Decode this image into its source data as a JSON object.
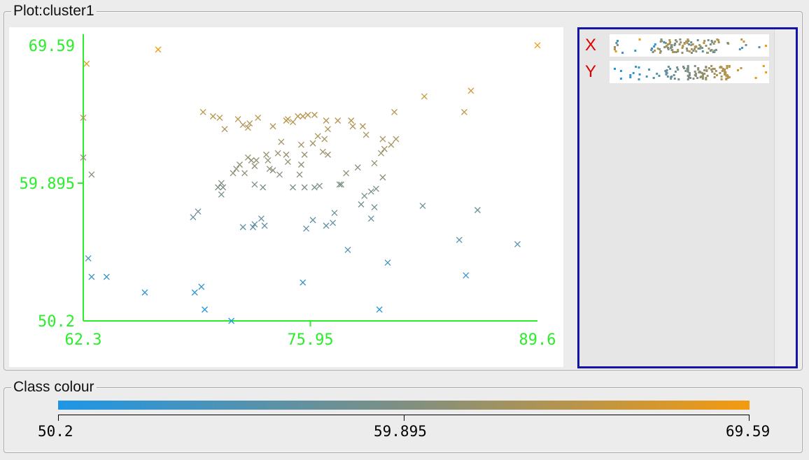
{
  "plot_group": {
    "title": "Plot:cluster1"
  },
  "class_group": {
    "title": "Class colour"
  },
  "colors": {
    "low": "#1e96e6",
    "mid": "#7f8f82",
    "high": "#f49a10",
    "axis": "#2aee2a",
    "selection_border": "#1414a8",
    "dim_label": "#e00000"
  },
  "dimensions": [
    {
      "label": "X"
    },
    {
      "label": "Y"
    }
  ],
  "chart_data": {
    "type": "scatter",
    "title": "",
    "xlabel": "",
    "ylabel": "",
    "xlim": [
      62.3,
      89.6
    ],
    "ylim": [
      50.2,
      69.59
    ],
    "xticks": [
      "62.3",
      "75.95",
      "89.6"
    ],
    "yticks": [
      "69.59",
      "59.895",
      "50.2"
    ],
    "grid": false,
    "marker": "x",
    "color_scale": {
      "min": 50.2,
      "max": 69.59,
      "ticks": [
        "50.2",
        "59.895",
        "69.59"
      ]
    },
    "points": [
      [
        66.8,
        69.3
      ],
      [
        62.5,
        68.3
      ],
      [
        62.3,
        64.5
      ],
      [
        62.3,
        61.7
      ],
      [
        62.8,
        60.5
      ],
      [
        62.6,
        54.6
      ],
      [
        62.8,
        53.3
      ],
      [
        63.7,
        53.3
      ],
      [
        66.0,
        52.2
      ],
      [
        69.0,
        52.2
      ],
      [
        69.4,
        52.6
      ],
      [
        69.6,
        51.0
      ],
      [
        71.2,
        50.2
      ],
      [
        75.5,
        52.9
      ],
      [
        80.1,
        51.0
      ],
      [
        80.6,
        54.3
      ],
      [
        85.3,
        53.4
      ],
      [
        89.6,
        69.6
      ],
      [
        82.8,
        66.0
      ],
      [
        85.6,
        66.4
      ],
      [
        85.2,
        64.9
      ],
      [
        78.2,
        55.2
      ],
      [
        84.9,
        55.9
      ],
      [
        88.4,
        55.6
      ],
      [
        86.0,
        58.0
      ],
      [
        82.7,
        58.3
      ],
      [
        79.8,
        58.2
      ],
      [
        79.0,
        58.4
      ],
      [
        79.6,
        57.4
      ],
      [
        77.4,
        57.8
      ],
      [
        76.9,
        56.9
      ],
      [
        75.7,
        56.7
      ],
      [
        76.1,
        57.3
      ],
      [
        77.3,
        57.1
      ],
      [
        73.0,
        57.4
      ],
      [
        72.6,
        57.0
      ],
      [
        71.9,
        56.8
      ],
      [
        72.5,
        56.8
      ],
      [
        73.2,
        56.9
      ],
      [
        70.6,
        59.1
      ],
      [
        70.7,
        59.6
      ],
      [
        70.6,
        59.9
      ],
      [
        70.4,
        59.6
      ],
      [
        72.6,
        59.8
      ],
      [
        73.1,
        59.6
      ],
      [
        74.9,
        59.6
      ],
      [
        75.6,
        59.6
      ],
      [
        76.2,
        59.6
      ],
      [
        76.5,
        59.7
      ],
      [
        77.7,
        59.8
      ],
      [
        77.8,
        59.8
      ],
      [
        79.6,
        59.3
      ],
      [
        79.9,
        59.5
      ],
      [
        79.2,
        59.0
      ],
      [
        80.3,
        60.3
      ],
      [
        79.8,
        61.3
      ],
      [
        78.1,
        60.6
      ],
      [
        78.8,
        61.0
      ],
      [
        80.2,
        62.0
      ],
      [
        80.4,
        62.3
      ],
      [
        80.8,
        62.6
      ],
      [
        77.0,
        61.9
      ],
      [
        76.7,
        62.1
      ],
      [
        76.8,
        63.0
      ],
      [
        76.1,
        62.7
      ],
      [
        75.4,
        62.6
      ],
      [
        75.6,
        61.9
      ],
      [
        74.5,
        61.9
      ],
      [
        75.4,
        61.2
      ],
      [
        75.3,
        60.5
      ],
      [
        74.6,
        61.4
      ],
      [
        74.0,
        62.0
      ],
      [
        74.2,
        62.8
      ],
      [
        73.3,
        61.9
      ],
      [
        73.4,
        61.5
      ],
      [
        72.7,
        61.5
      ],
      [
        72.4,
        61.5
      ],
      [
        71.7,
        61.2
      ],
      [
        72.2,
        61.7
      ],
      [
        73.5,
        60.9
      ],
      [
        74.1,
        60.5
      ],
      [
        73.7,
        60.8
      ],
      [
        72.0,
        60.6
      ],
      [
        71.3,
        60.6
      ],
      [
        72.6,
        61.1
      ],
      [
        71.5,
        60.9
      ],
      [
        70.8,
        63.7
      ],
      [
        70.5,
        64.5
      ],
      [
        69.5,
        64.9
      ],
      [
        70.1,
        64.6
      ],
      [
        71.6,
        64.4
      ],
      [
        71.9,
        64.0
      ],
      [
        72.3,
        64.1
      ],
      [
        72.2,
        63.8
      ],
      [
        72.8,
        64.5
      ],
      [
        73.7,
        63.9
      ],
      [
        74.5,
        64.3
      ],
      [
        74.6,
        64.4
      ],
      [
        74.9,
        64.2
      ],
      [
        75.2,
        64.6
      ],
      [
        75.5,
        64.6
      ],
      [
        75.8,
        64.7
      ],
      [
        76.2,
        64.7
      ],
      [
        76.9,
        64.3
      ],
      [
        77.6,
        64.3
      ],
      [
        78.4,
        64.3
      ],
      [
        78.5,
        63.9
      ],
      [
        79.1,
        63.9
      ],
      [
        80.3,
        63.0
      ],
      [
        79.3,
        63.3
      ],
      [
        77.0,
        63.7
      ],
      [
        76.4,
        63.2
      ],
      [
        81.1,
        63.0
      ],
      [
        81.0,
        64.9
      ],
      [
        69.2,
        57.9
      ],
      [
        68.9,
        57.5
      ]
    ]
  }
}
